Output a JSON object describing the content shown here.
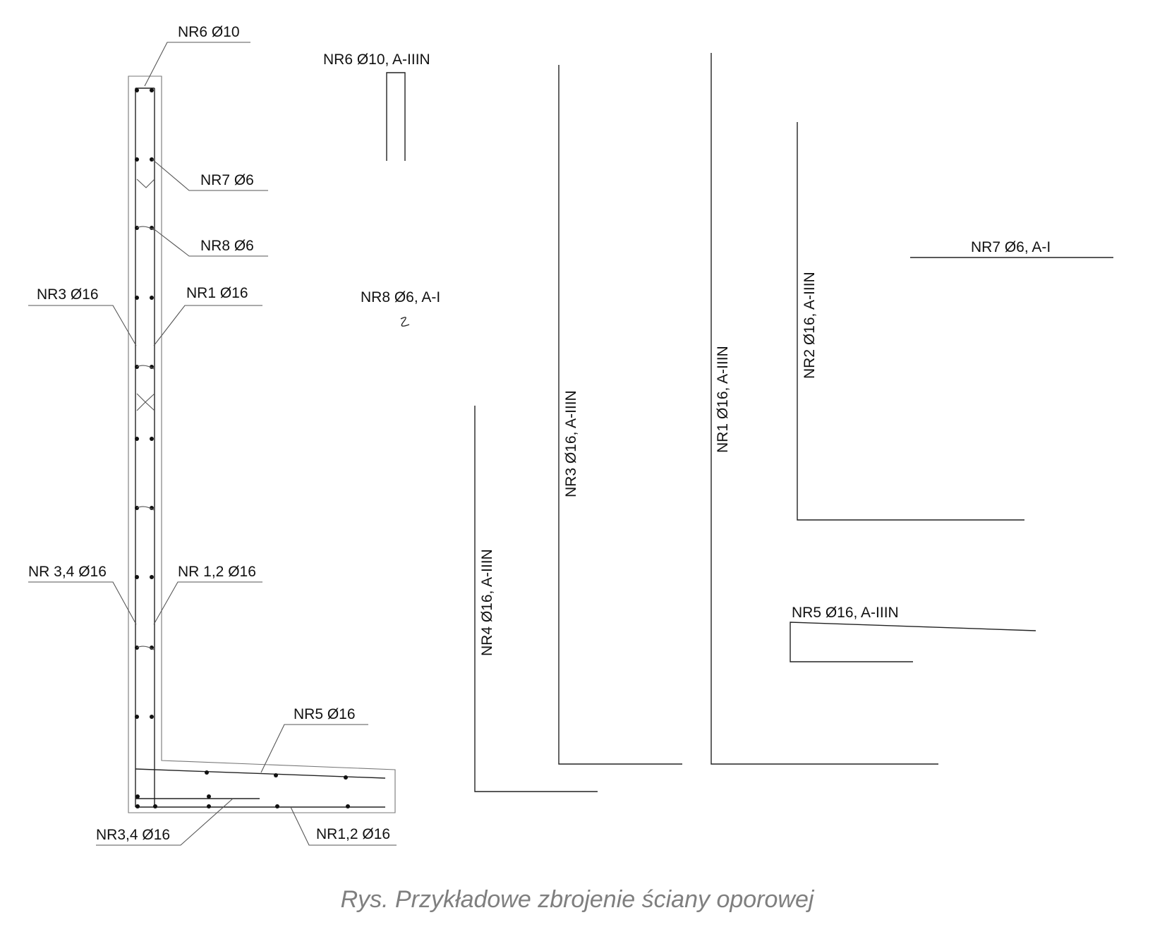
{
  "section_labels": {
    "nr6": "NR6 Ø10",
    "nr7": "NR7 Ø6",
    "nr8": "NR8 Ø6",
    "nr3": "NR3 Ø16",
    "nr1": "NR1 Ø16",
    "nr34_wall": "NR 3,4 Ø16",
    "nr12_wall": "NR 1,2 Ø16",
    "nr5": "NR5 Ø16",
    "nr34_base": "NR3,4 Ø16",
    "nr12_base": "NR1,2 Ø16"
  },
  "bar_labels": {
    "nr6": "NR6 Ø10, A-IIIN",
    "nr8": "NR8 Ø6, A-I",
    "nr4": "NR4 Ø16, A-IIIN",
    "nr3": "NR3 Ø16, A-IIIN",
    "nr1": "NR1 Ø16, A-IIIN",
    "nr2": "NR2 Ø16, A-IIIN",
    "nr7": "NR7 Ø6, A-I",
    "nr5": "NR5 Ø16, A-IIIN"
  },
  "caption": "Rys. Przykładowe zbrojenie ściany oporowej"
}
